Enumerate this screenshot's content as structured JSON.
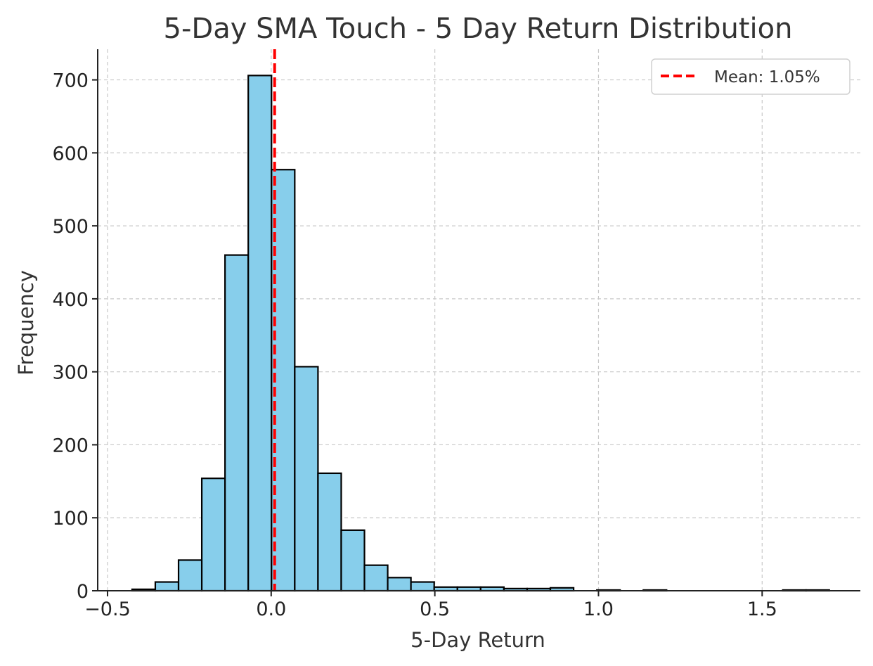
{
  "chart_data": {
    "type": "bar",
    "title": "5-Day SMA Touch - 5 Day Return Distribution",
    "xlabel": "5-Day Return",
    "ylabel": "Frequency",
    "xlim": [
      -0.53,
      1.8
    ],
    "ylim": [
      0,
      742
    ],
    "xticks": [
      -0.5,
      0.0,
      0.5,
      1.0,
      1.5
    ],
    "xtick_labels": [
      "−0.5",
      "0.0",
      "0.5",
      "1.0",
      "1.5"
    ],
    "yticks": [
      0,
      100,
      200,
      300,
      400,
      500,
      600,
      700
    ],
    "ytick_labels": [
      "0",
      "100",
      "200",
      "300",
      "400",
      "500",
      "600",
      "700"
    ],
    "grid": true,
    "legend_position": "top-right",
    "bar_color": "#87CEEB",
    "bin_edges": [
      -0.425,
      -0.354,
      -0.283,
      -0.212,
      -0.141,
      -0.07,
      0.001,
      0.072,
      0.143,
      0.214,
      0.285,
      0.356,
      0.427,
      0.498,
      0.569,
      0.64,
      0.711,
      0.782,
      0.853,
      0.924,
      0.995,
      1.066,
      1.137,
      1.208,
      1.279,
      1.35,
      1.421,
      1.492,
      1.563,
      1.634,
      1.705
    ],
    "values": [
      2,
      12,
      42,
      154,
      460,
      706,
      577,
      307,
      161,
      83,
      35,
      18,
      12,
      5,
      5,
      5,
      3,
      3,
      4,
      0,
      1,
      0,
      1,
      0,
      0,
      0,
      0,
      0,
      1,
      1
    ],
    "mean_line": {
      "x": 0.0105,
      "label": "Mean: 1.05%",
      "color": "#ff0000",
      "style": "dashed"
    }
  }
}
